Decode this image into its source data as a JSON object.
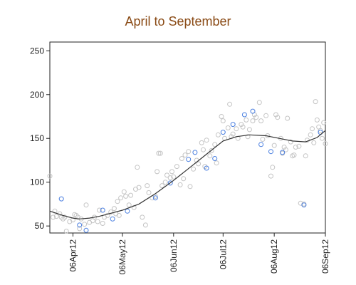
{
  "chart_data": {
    "type": "scatter",
    "title": "April to September",
    "xlabel": "",
    "ylabel": "",
    "x_ticks": [
      "06Apr12",
      "06May12",
      "06Jun12",
      "06Jul12",
      "06Aug12",
      "06Sep12"
    ],
    "x_tick_dates": [
      "2012-04-06",
      "2012-05-06",
      "2012-06-06",
      "2012-07-06",
      "2012-08-06",
      "2012-09-06"
    ],
    "xlim": [
      "2012-03-23",
      "2012-09-06"
    ],
    "y_ticks": [
      50,
      100,
      150,
      200,
      250
    ],
    "ylim": [
      42,
      260
    ],
    "grid": false,
    "colors": {
      "gray_points": "#c4c4c4",
      "blue_points": "#4a7fe0",
      "smoother": "#333333",
      "title": "#8a4b16"
    },
    "series": [
      {
        "style": "gray-open-circles",
        "points": [
          [
            "2012-03-23",
            107
          ],
          [
            "2012-03-25",
            60
          ],
          [
            "2012-03-26",
            67
          ],
          [
            "2012-03-27",
            61
          ],
          [
            "2012-03-29",
            64
          ],
          [
            "2012-03-30",
            60
          ],
          [
            "2012-03-31",
            58
          ],
          [
            "2012-04-01",
            60
          ],
          [
            "2012-04-02",
            44
          ],
          [
            "2012-04-04",
            55
          ],
          [
            "2012-04-06",
            57
          ],
          [
            "2012-04-07",
            63
          ],
          [
            "2012-04-08",
            62
          ],
          [
            "2012-04-09",
            60
          ],
          [
            "2012-04-10",
            47
          ],
          [
            "2012-04-11",
            58
          ],
          [
            "2012-04-13",
            52
          ],
          [
            "2012-04-14",
            74
          ],
          [
            "2012-04-16",
            54
          ],
          [
            "2012-04-18",
            56
          ],
          [
            "2012-04-19",
            60
          ],
          [
            "2012-04-21",
            55
          ],
          [
            "2012-04-22",
            68
          ],
          [
            "2012-04-24",
            53
          ],
          [
            "2012-04-25",
            60
          ],
          [
            "2012-04-27",
            62
          ],
          [
            "2012-04-29",
            66
          ],
          [
            "2012-05-01",
            70
          ],
          [
            "2012-05-02",
            64
          ],
          [
            "2012-05-03",
            78
          ],
          [
            "2012-05-04",
            62
          ],
          [
            "2012-05-05",
            82
          ],
          [
            "2012-05-07",
            89
          ],
          [
            "2012-05-08",
            84
          ],
          [
            "2012-05-10",
            74
          ],
          [
            "2012-05-11",
            85
          ],
          [
            "2012-05-13",
            71
          ],
          [
            "2012-05-14",
            92
          ],
          [
            "2012-05-15",
            117
          ],
          [
            "2012-05-16",
            94
          ],
          [
            "2012-05-18",
            60
          ],
          [
            "2012-05-20",
            51
          ],
          [
            "2012-05-21",
            96
          ],
          [
            "2012-05-22",
            88
          ],
          [
            "2012-05-24",
            82
          ],
          [
            "2012-05-26",
            84
          ],
          [
            "2012-05-27",
            112
          ],
          [
            "2012-05-28",
            133
          ],
          [
            "2012-05-29",
            133
          ],
          [
            "2012-05-30",
            96
          ],
          [
            "2012-06-01",
            100
          ],
          [
            "2012-06-02",
            108
          ],
          [
            "2012-06-04",
            105
          ],
          [
            "2012-06-05",
            112
          ],
          [
            "2012-06-06",
            106
          ],
          [
            "2012-06-08",
            118
          ],
          [
            "2012-06-10",
            97
          ],
          [
            "2012-06-11",
            127
          ],
          [
            "2012-06-12",
            104
          ],
          [
            "2012-06-13",
            131
          ],
          [
            "2012-06-15",
            135
          ],
          [
            "2012-06-16",
            95
          ],
          [
            "2012-06-18",
            115
          ],
          [
            "2012-06-20",
            125
          ],
          [
            "2012-06-21",
            121
          ],
          [
            "2012-06-23",
            145
          ],
          [
            "2012-06-24",
            137
          ],
          [
            "2012-06-25",
            118
          ],
          [
            "2012-06-26",
            148
          ],
          [
            "2012-06-28",
            130
          ],
          [
            "2012-06-29",
            136
          ],
          [
            "2012-07-01",
            143
          ],
          [
            "2012-07-02",
            122
          ],
          [
            "2012-07-03",
            154
          ],
          [
            "2012-07-05",
            175
          ],
          [
            "2012-07-06",
            170
          ],
          [
            "2012-07-07",
            150
          ],
          [
            "2012-07-09",
            162
          ],
          [
            "2012-07-10",
            189
          ],
          [
            "2012-07-11",
            152
          ],
          [
            "2012-07-12",
            155
          ],
          [
            "2012-07-14",
            161
          ],
          [
            "2012-07-15",
            150
          ],
          [
            "2012-07-17",
            166
          ],
          [
            "2012-07-18",
            163
          ],
          [
            "2012-07-20",
            171
          ],
          [
            "2012-07-21",
            152
          ],
          [
            "2012-07-22",
            160
          ],
          [
            "2012-07-24",
            170
          ],
          [
            "2012-07-25",
            177
          ],
          [
            "2012-07-26",
            174
          ],
          [
            "2012-07-28",
            191
          ],
          [
            "2012-07-29",
            170
          ],
          [
            "2012-07-30",
            149
          ],
          [
            "2012-08-01",
            176
          ],
          [
            "2012-08-02",
            153
          ],
          [
            "2012-08-04",
            107
          ],
          [
            "2012-08-05",
            117
          ],
          [
            "2012-08-06",
            142
          ],
          [
            "2012-08-07",
            177
          ],
          [
            "2012-08-08",
            174
          ],
          [
            "2012-08-10",
            150
          ],
          [
            "2012-08-11",
            133
          ],
          [
            "2012-08-12",
            140
          ],
          [
            "2012-08-13",
            137
          ],
          [
            "2012-08-14",
            173
          ],
          [
            "2012-08-16",
            146
          ],
          [
            "2012-08-17",
            130
          ],
          [
            "2012-08-18",
            131
          ],
          [
            "2012-08-19",
            140
          ],
          [
            "2012-08-21",
            141
          ],
          [
            "2012-08-22",
            76
          ],
          [
            "2012-08-24",
            75
          ],
          [
            "2012-08-25",
            130
          ],
          [
            "2012-08-26",
            148
          ],
          [
            "2012-08-28",
            154
          ],
          [
            "2012-08-29",
            161
          ],
          [
            "2012-08-30",
            145
          ],
          [
            "2012-08-31",
            192
          ],
          [
            "2012-09-01",
            171
          ],
          [
            "2012-09-02",
            163
          ],
          [
            "2012-09-03",
            159
          ],
          [
            "2012-09-04",
            150
          ],
          [
            "2012-09-05",
            168
          ],
          [
            "2012-09-06",
            144
          ]
        ]
      },
      {
        "style": "blue-open-circles",
        "points": [
          [
            "2012-03-30",
            81
          ],
          [
            "2012-04-10",
            51
          ],
          [
            "2012-04-14",
            45
          ],
          [
            "2012-04-24",
            68
          ],
          [
            "2012-04-30",
            58
          ],
          [
            "2012-05-09",
            67
          ],
          [
            "2012-05-26",
            82
          ],
          [
            "2012-06-04",
            99
          ],
          [
            "2012-06-15",
            126
          ],
          [
            "2012-06-19",
            134
          ],
          [
            "2012-06-26",
            116
          ],
          [
            "2012-07-01",
            127
          ],
          [
            "2012-07-06",
            157
          ],
          [
            "2012-07-12",
            166
          ],
          [
            "2012-07-19",
            177
          ],
          [
            "2012-07-24",
            181
          ],
          [
            "2012-07-29",
            143
          ],
          [
            "2012-08-04",
            135
          ],
          [
            "2012-08-11",
            134
          ],
          [
            "2012-08-24",
            74
          ],
          [
            "2012-09-03",
            157
          ]
        ]
      },
      {
        "style": "smoother-line",
        "points": [
          [
            "2012-03-23",
            67
          ],
          [
            "2012-03-31",
            62
          ],
          [
            "2012-04-06",
            59
          ],
          [
            "2012-04-10",
            58
          ],
          [
            "2012-04-16",
            59
          ],
          [
            "2012-04-22",
            61
          ],
          [
            "2012-04-30",
            65
          ],
          [
            "2012-05-06",
            68
          ],
          [
            "2012-05-16",
            75
          ],
          [
            "2012-05-26",
            87
          ],
          [
            "2012-06-06",
            102
          ],
          [
            "2012-06-16",
            117
          ],
          [
            "2012-06-26",
            132
          ],
          [
            "2012-07-06",
            147
          ],
          [
            "2012-07-14",
            152
          ],
          [
            "2012-07-22",
            154
          ],
          [
            "2012-08-01",
            153
          ],
          [
            "2012-08-09",
            150
          ],
          [
            "2012-08-17",
            147
          ],
          [
            "2012-08-25",
            146
          ],
          [
            "2012-09-01",
            151
          ],
          [
            "2012-09-06",
            159
          ]
        ]
      }
    ]
  }
}
